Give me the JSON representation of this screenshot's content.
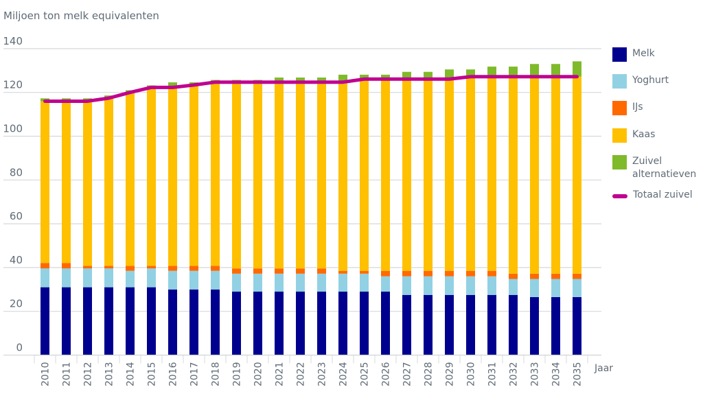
{
  "chart_data": {
    "type": "bar",
    "stacked": true,
    "title": "",
    "ylabel": "Miljoen ton melk equivalenten",
    "xlabel": "Jaar",
    "ylim": [
      0,
      140
    ],
    "yticks": [
      0,
      20,
      40,
      60,
      80,
      100,
      120,
      140
    ],
    "grid": true,
    "legend_position": "right",
    "categories": [
      "2010",
      "2011",
      "2012",
      "2013",
      "2014",
      "2015",
      "2016",
      "2017",
      "2018",
      "2019",
      "2020",
      "2021",
      "2022",
      "2023",
      "2024",
      "2025",
      "2026",
      "2027",
      "2028",
      "2029",
      "2030",
      "2031",
      "2032",
      "2033",
      "2034",
      "2035"
    ],
    "series": [
      {
        "name": "Melk",
        "color": "#00008f",
        "values": [
          31,
          31,
          31,
          31,
          31,
          31,
          30,
          30,
          30,
          29,
          29,
          29,
          29,
          29,
          29,
          29,
          29,
          27.5,
          27.5,
          27.5,
          27.5,
          27.5,
          27.5,
          26.5,
          26.5,
          26.5
        ]
      },
      {
        "name": "Yoghurt",
        "color": "#92d1e3",
        "values": [
          8.6,
          8.6,
          8.6,
          8.6,
          7.5,
          8.6,
          8.5,
          8.5,
          8.5,
          8.2,
          8.2,
          8.2,
          8.2,
          8.2,
          8.2,
          8.2,
          7,
          8.5,
          8.5,
          8.5,
          8.5,
          8.5,
          7.3,
          8.3,
          8.3,
          8.3
        ]
      },
      {
        "name": "IJs",
        "color": "#ff6a00",
        "values": [
          2.5,
          2.5,
          1.2,
          1.2,
          2.3,
          1.2,
          2.3,
          2.3,
          2.3,
          2.4,
          2.4,
          2.4,
          2.4,
          2.4,
          1.3,
          1.3,
          2.5,
          2.5,
          2.5,
          2.5,
          2.5,
          2.5,
          2.4,
          2.4,
          2.4,
          2.4
        ]
      },
      {
        "name": "Kaas",
        "color": "#ffc000",
        "values": [
          73.9,
          73.9,
          75.2,
          76.6,
          79.2,
          81.5,
          81.5,
          82.6,
          83.9,
          85.1,
          85.1,
          85.1,
          85.1,
          85.1,
          86.2,
          87.6,
          87.6,
          87.6,
          87.6,
          87.6,
          88.7,
          88.7,
          90,
          90,
          90,
          90
        ]
      },
      {
        "name": "Zuivel alternatieven",
        "color": "#7fba2a",
        "values": [
          1.3,
          1.3,
          1.3,
          1.2,
          1,
          0.9,
          2.3,
          1.2,
          1,
          1,
          1,
          2.1,
          2.1,
          2.1,
          3.4,
          2,
          2,
          3.3,
          3.3,
          4.4,
          3.3,
          4.6,
          4.6,
          5.8,
          5.8,
          7
        ]
      }
    ],
    "line_series": {
      "name": "Totaal zuivel",
      "color": "#c0008f",
      "values": [
        116,
        116,
        116,
        117.4,
        120,
        122.3,
        122.3,
        123.4,
        124.7,
        124.7,
        124.7,
        124.7,
        124.7,
        124.7,
        124.7,
        126.1,
        126.1,
        126.1,
        126.1,
        126.1,
        127.2,
        127.2,
        127.2,
        127.2,
        127.2,
        127.2
      ]
    },
    "legend": [
      {
        "label": "Melk",
        "kind": "box",
        "color": "#00008f"
      },
      {
        "label": "Yoghurt",
        "kind": "box",
        "color": "#92d1e3"
      },
      {
        "label": "IJs",
        "kind": "box",
        "color": "#ff6a00"
      },
      {
        "label": "Kaas",
        "kind": "box",
        "color": "#ffc000"
      },
      {
        "label": "Zuivel alternatieven",
        "kind": "box",
        "color": "#7fba2a"
      },
      {
        "label": "Totaal zuivel",
        "kind": "line",
        "color": "#c0008f"
      }
    ]
  }
}
